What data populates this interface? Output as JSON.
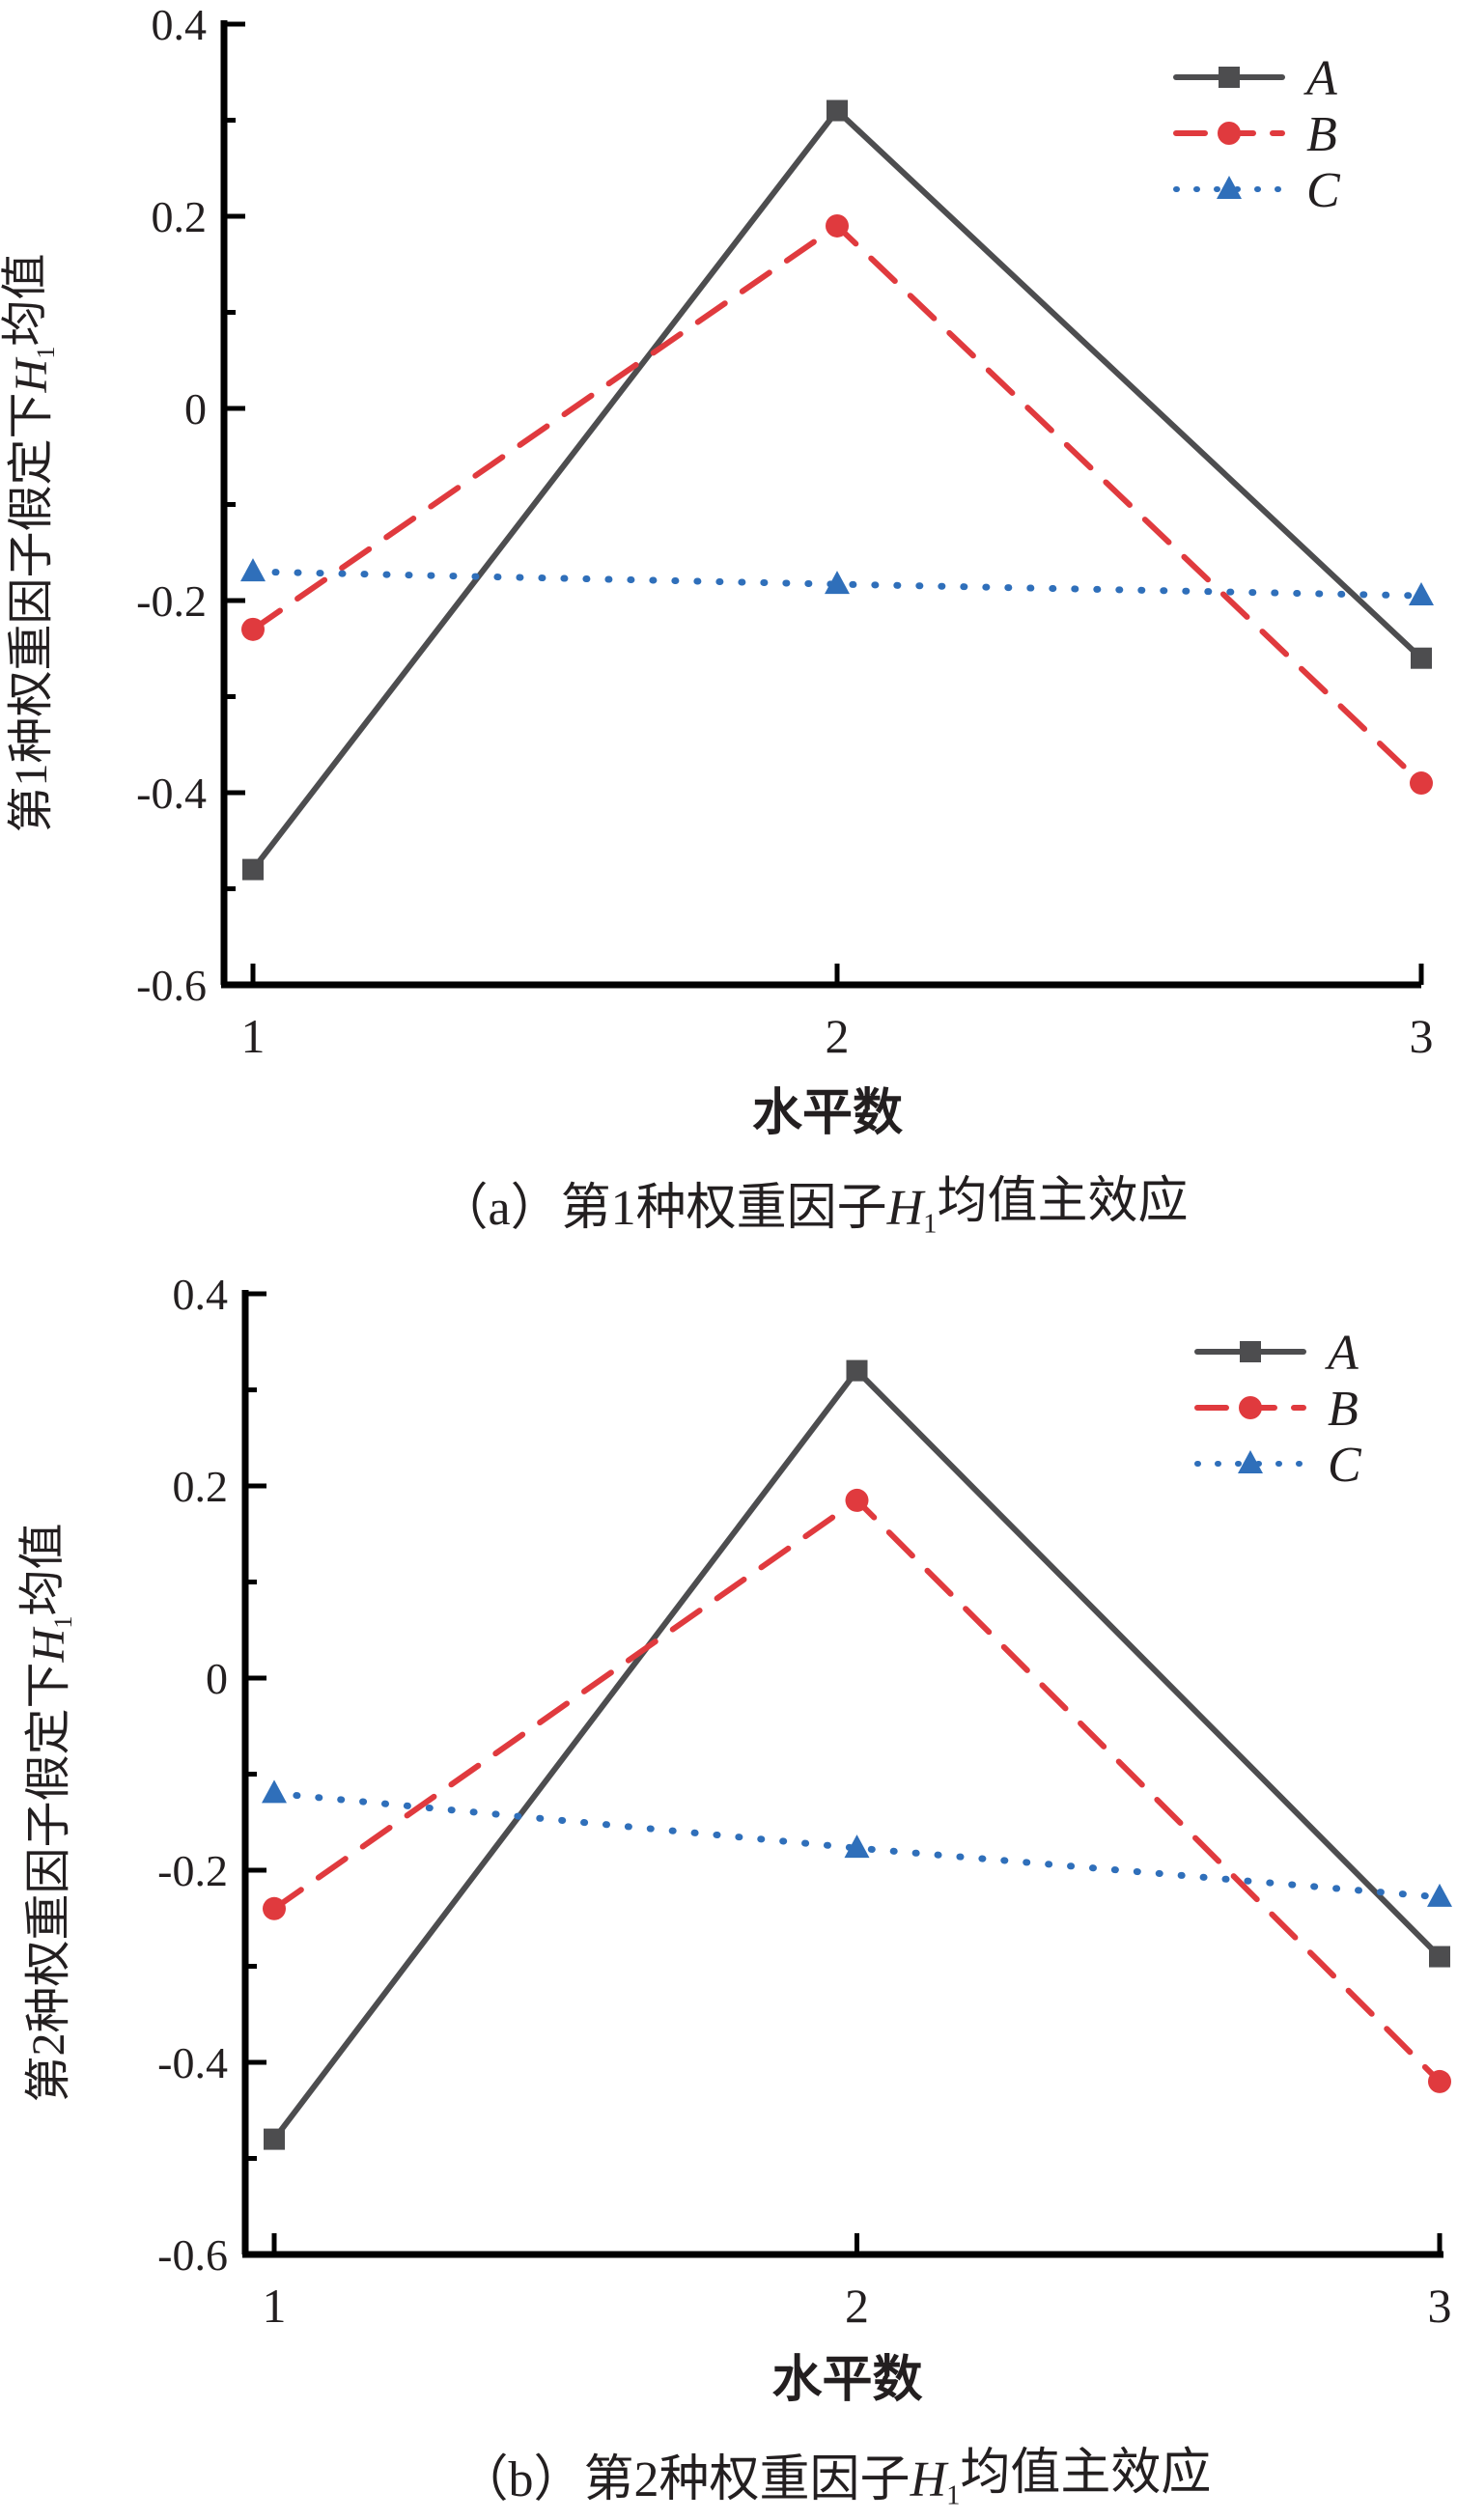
{
  "chart_data": [
    {
      "type": "line",
      "caption": {
        "prefix": "（a）第1种权重因子",
        "var": "H",
        "sub": "1",
        "suffix": "均值主效应"
      },
      "xlabel": "水平数",
      "ylabel": {
        "prefix": "第1种权重因子假定下",
        "var": "H",
        "sub": "1",
        "suffix": "均值"
      },
      "x": [
        1,
        2,
        3
      ],
      "xticks": [
        "1",
        "2",
        "3"
      ],
      "ylim": [
        -0.6,
        0.4
      ],
      "yticks": [
        "-0.6",
        "-0.4",
        "-0.2",
        "0",
        "0.2",
        "0.4"
      ],
      "grid": false,
      "legend_position": "top-right",
      "series": [
        {
          "name": "A",
          "values": [
            -0.48,
            0.31,
            -0.26
          ],
          "color": "#4d4d4f",
          "style": "solid",
          "marker": "square"
        },
        {
          "name": "B",
          "values": [
            -0.23,
            0.19,
            -0.39
          ],
          "color": "#e03a3e",
          "style": "dashed",
          "marker": "circle"
        },
        {
          "name": "C",
          "values": [
            -0.17,
            -0.183,
            -0.195
          ],
          "color": "#2f6fba",
          "style": "dotted",
          "marker": "triangle"
        }
      ]
    },
    {
      "type": "line",
      "caption": {
        "prefix": "（b）第2种权重因子",
        "var": "H",
        "sub": "1",
        "suffix": "均值主效应"
      },
      "xlabel": "水平数",
      "ylabel": {
        "prefix": "第2种权重因子假定下",
        "var": "H",
        "sub": "1",
        "suffix": "均值"
      },
      "x": [
        1,
        2,
        3
      ],
      "xticks": [
        "1",
        "2",
        "3"
      ],
      "ylim": [
        -0.6,
        0.4
      ],
      "yticks": [
        "-0.6",
        "-0.4",
        "-0.2",
        "0",
        "0.2",
        "0.4"
      ],
      "grid": false,
      "legend_position": "top-right",
      "series": [
        {
          "name": "A",
          "values": [
            -0.48,
            0.32,
            -0.29
          ],
          "color": "#4d4d4f",
          "style": "solid",
          "marker": "square"
        },
        {
          "name": "B",
          "values": [
            -0.24,
            0.185,
            -0.42
          ],
          "color": "#e03a3e",
          "style": "dashed",
          "marker": "circle"
        },
        {
          "name": "C",
          "values": [
            -0.12,
            -0.177,
            -0.228
          ],
          "color": "#2f6fba",
          "style": "dotted",
          "marker": "triangle"
        }
      ]
    }
  ]
}
